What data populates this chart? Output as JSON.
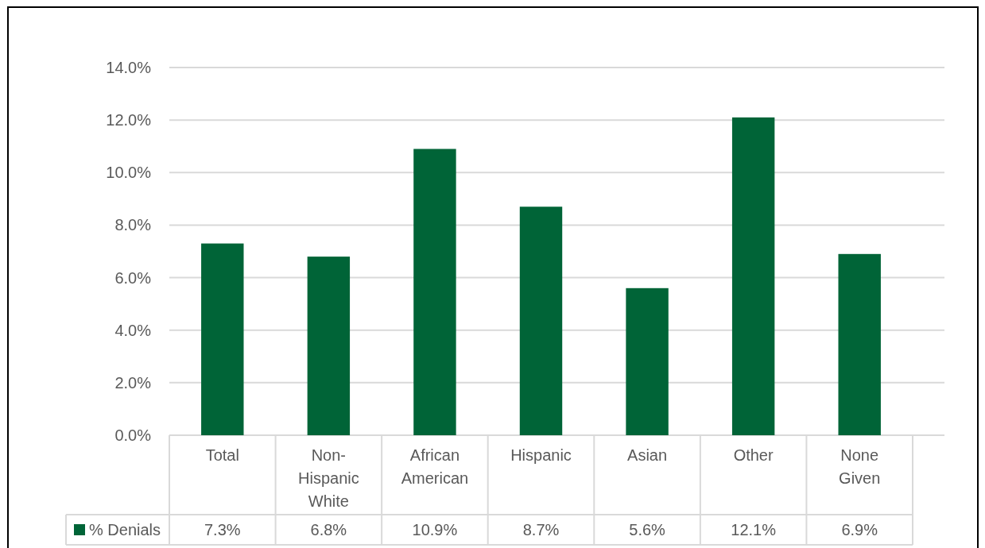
{
  "chart_data": {
    "type": "bar",
    "categories": [
      "Total",
      "Non-Hispanic White",
      "African American",
      "Hispanic",
      "Asian",
      "Other",
      "None Given"
    ],
    "series": [
      {
        "name": "% Denials",
        "color": "#006437",
        "values": [
          7.3,
          6.8,
          10.9,
          8.7,
          5.6,
          12.1,
          6.9
        ],
        "value_labels": [
          "7.3%",
          "6.8%",
          "10.9%",
          "8.7%",
          "5.6%",
          "12.1%",
          "6.9%"
        ]
      }
    ],
    "ylim": [
      0,
      14
    ],
    "yticks": [
      {
        "value": 0,
        "label": "0.0%"
      },
      {
        "value": 2,
        "label": "2.0%"
      },
      {
        "value": 4,
        "label": "4.0%"
      },
      {
        "value": 6,
        "label": "6.0%"
      },
      {
        "value": 8,
        "label": "8.0%"
      },
      {
        "value": 10,
        "label": "10.0%"
      },
      {
        "value": 12,
        "label": "12.0%"
      },
      {
        "value": 14,
        "label": "14.0%"
      }
    ],
    "grid": "y",
    "legend": "bottom"
  }
}
